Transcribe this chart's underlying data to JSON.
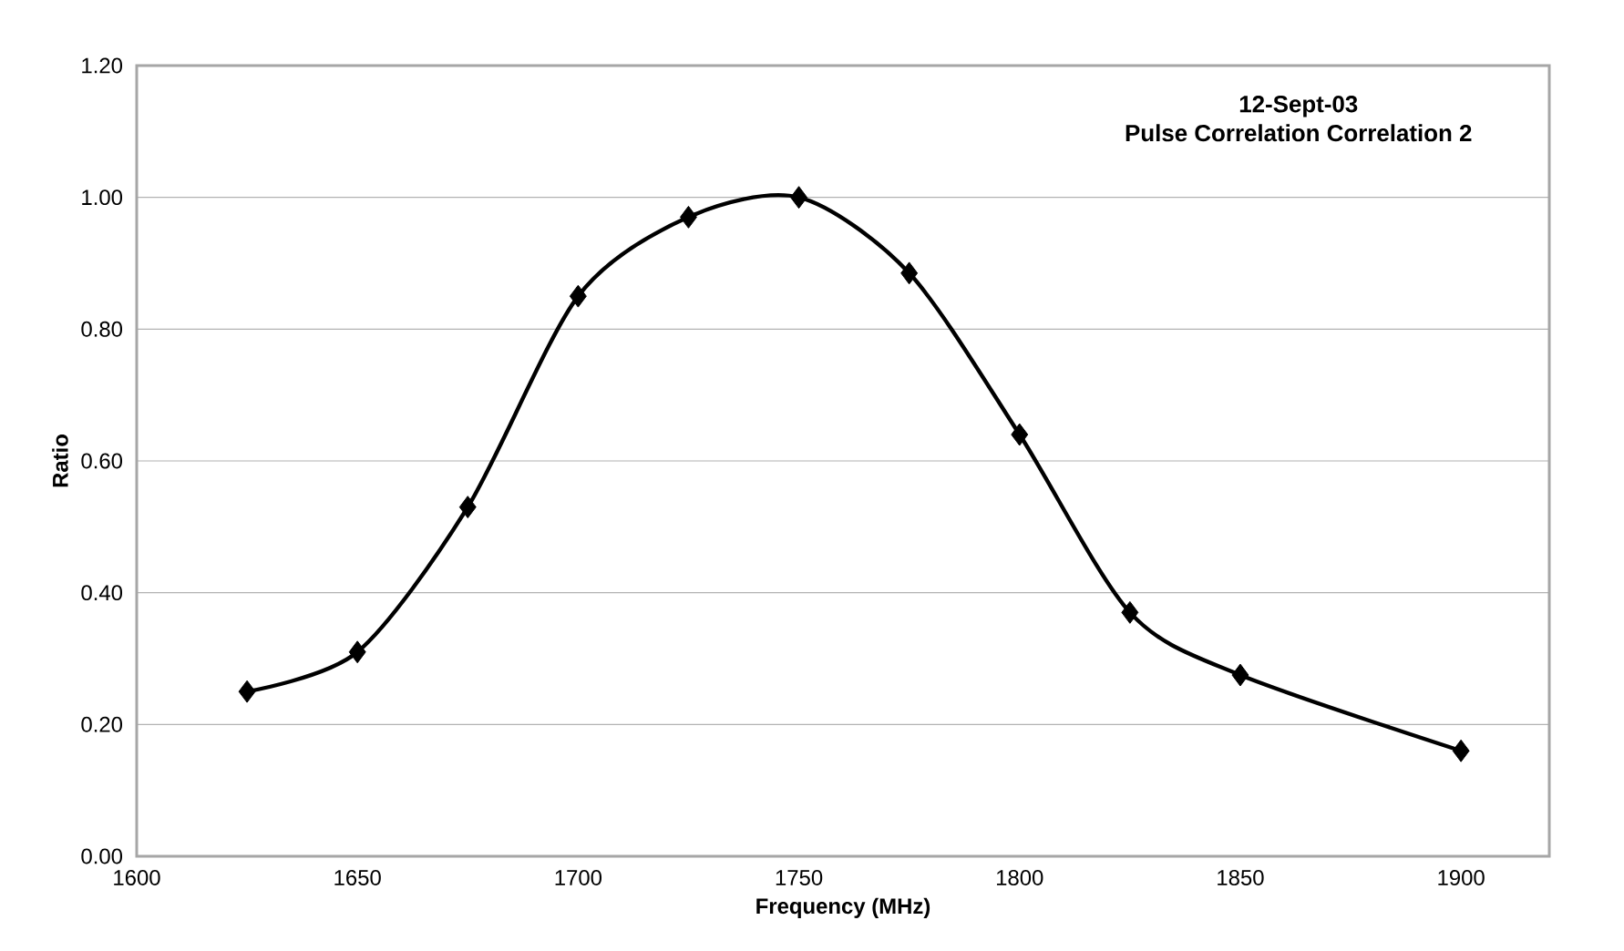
{
  "chart_data": {
    "type": "line",
    "title": "12-Sept-03",
    "subtitle": "Pulse Correlation Correlation 2",
    "xlabel": "Frequency (MHz)",
    "ylabel": "Ratio",
    "x": [
      1625,
      1650,
      1675,
      1700,
      1725,
      1750,
      1775,
      1800,
      1825,
      1850,
      1900
    ],
    "series": [
      {
        "color": "#000000",
        "values": [
          0.25,
          0.31,
          0.53,
          0.85,
          0.97,
          1.0,
          0.885,
          0.64,
          0.37,
          0.275,
          0.16
        ]
      }
    ],
    "xlim": [
      1600,
      1920
    ],
    "xticks": [
      1600,
      1650,
      1700,
      1750,
      1800,
      1850,
      1900
    ],
    "ylim": [
      0,
      1.2
    ],
    "yticks": [
      {
        "value": 0,
        "label": "0.00"
      },
      {
        "value": 0.2,
        "label": "0.20"
      },
      {
        "value": 0.4,
        "label": "0.40"
      },
      {
        "value": 0.6,
        "label": "0.60"
      },
      {
        "value": 0.8,
        "label": "0.80"
      },
      {
        "value": 1.0,
        "label": "1.00"
      },
      {
        "value": 1.2,
        "label": "1.20"
      }
    ],
    "grid": "y",
    "marker": "diamond",
    "line_style": "solid"
  }
}
